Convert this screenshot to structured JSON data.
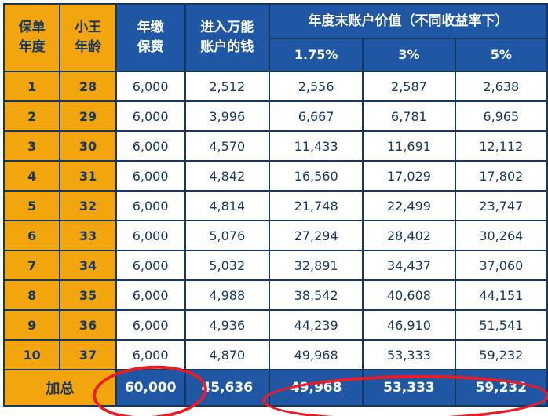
{
  "colors": {
    "header_orange": "#F2A50C",
    "header_blue": "#1F57A5",
    "navy_text": "#17375E",
    "annotation_red": "#ED1C24",
    "cell_white": "#FFFFFF"
  },
  "chart_data": {
    "type": "table",
    "header": {
      "policy_year": "保单\n年度",
      "age": "小王\n年龄",
      "premium": "年缴\n保费",
      "into_account": "进入万能\n账户的钱",
      "value_group_title": "年度末账户价值（不同收益率下）",
      "rate_columns": [
        "1.75%",
        "3%",
        "5%"
      ]
    },
    "rows": [
      [
        "1",
        "28",
        "6,000",
        "2,512",
        "2,556",
        "2,587",
        "2,638"
      ],
      [
        "2",
        "29",
        "6,000",
        "3,996",
        "6,667",
        "6,781",
        "6,965"
      ],
      [
        "3",
        "30",
        "6,000",
        "4,570",
        "11,433",
        "11,691",
        "12,112"
      ],
      [
        "4",
        "31",
        "6,000",
        "4,842",
        "16,560",
        "17,029",
        "17,802"
      ],
      [
        "5",
        "32",
        "6,000",
        "4,814",
        "21,748",
        "22,499",
        "23,747"
      ],
      [
        "6",
        "33",
        "6,000",
        "5,076",
        "27,294",
        "28,402",
        "30,264"
      ],
      [
        "7",
        "34",
        "6,000",
        "5,032",
        "32,891",
        "34,437",
        "37,060"
      ],
      [
        "8",
        "35",
        "6,000",
        "4,988",
        "38,542",
        "40,608",
        "44,151"
      ],
      [
        "9",
        "36",
        "6,000",
        "4,936",
        "44,239",
        "46,910",
        "51,541"
      ],
      [
        "10",
        "37",
        "6,000",
        "4,870",
        "49,968",
        "53,333",
        "59,232"
      ]
    ],
    "total": {
      "label": "加总",
      "values": [
        "60,000",
        "45,636",
        "49,968",
        "53,333",
        "59,232"
      ]
    }
  }
}
